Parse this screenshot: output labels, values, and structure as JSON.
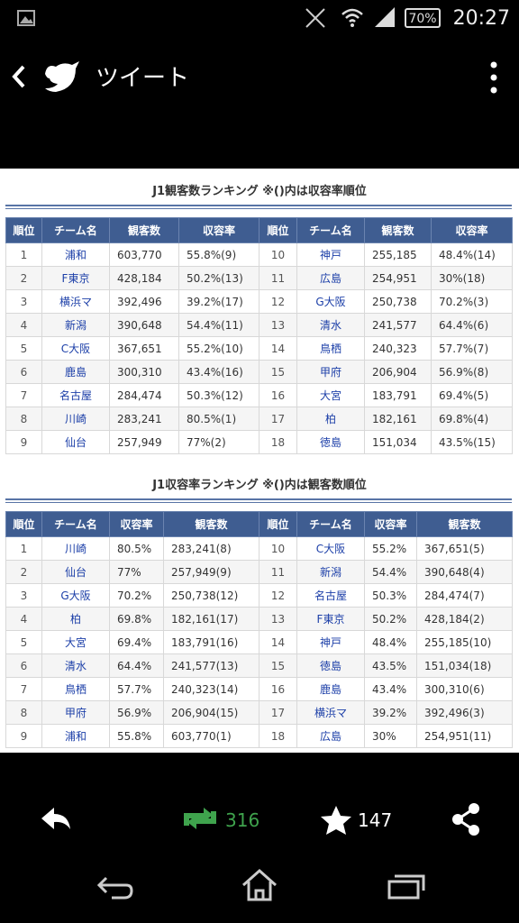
{
  "status_bar": {
    "battery": "70%",
    "time": "20:27"
  },
  "header": {
    "title": "ツイート"
  },
  "table1": {
    "title": "J1観客数ランキング ※()内は収容率順位",
    "columns": [
      "順位",
      "チーム名",
      "観客数",
      "収容率",
      "順位",
      "チーム名",
      "観客数",
      "収容率"
    ],
    "rows": [
      [
        "1",
        "浦和",
        "603,770",
        "55.8%(9)",
        "10",
        "神戸",
        "255,185",
        "48.4%(14)"
      ],
      [
        "2",
        "F東京",
        "428,184",
        "50.2%(13)",
        "11",
        "広島",
        "254,951",
        "30%(18)"
      ],
      [
        "3",
        "横浜マ",
        "392,496",
        "39.2%(17)",
        "12",
        "G大阪",
        "250,738",
        "70.2%(3)"
      ],
      [
        "4",
        "新潟",
        "390,648",
        "54.4%(11)",
        "13",
        "清水",
        "241,577",
        "64.4%(6)"
      ],
      [
        "5",
        "C大阪",
        "367,651",
        "55.2%(10)",
        "14",
        "鳥栖",
        "240,323",
        "57.7%(7)"
      ],
      [
        "6",
        "鹿島",
        "300,310",
        "43.4%(16)",
        "15",
        "甲府",
        "206,904",
        "56.9%(8)"
      ],
      [
        "7",
        "名古屋",
        "284,474",
        "50.3%(12)",
        "16",
        "大宮",
        "183,791",
        "69.4%(5)"
      ],
      [
        "8",
        "川崎",
        "283,241",
        "80.5%(1)",
        "17",
        "柏",
        "182,161",
        "69.8%(4)"
      ],
      [
        "9",
        "仙台",
        "257,949",
        "77%(2)",
        "18",
        "徳島",
        "151,034",
        "43.5%(15)"
      ]
    ]
  },
  "table2": {
    "title": "J1収容率ランキング ※()内は観客数順位",
    "columns": [
      "順位",
      "チーム名",
      "収容率",
      "観客数",
      "順位",
      "チーム名",
      "収容率",
      "観客数"
    ],
    "rows": [
      [
        "1",
        "川崎",
        "80.5%",
        "283,241(8)",
        "10",
        "C大阪",
        "55.2%",
        "367,651(5)"
      ],
      [
        "2",
        "仙台",
        "77%",
        "257,949(9)",
        "11",
        "新潟",
        "54.4%",
        "390,648(4)"
      ],
      [
        "3",
        "G大阪",
        "70.2%",
        "250,738(12)",
        "12",
        "名古屋",
        "50.3%",
        "284,474(7)"
      ],
      [
        "4",
        "柏",
        "69.8%",
        "182,161(17)",
        "13",
        "F東京",
        "50.2%",
        "428,184(2)"
      ],
      [
        "5",
        "大宮",
        "69.4%",
        "183,791(16)",
        "14",
        "神戸",
        "48.4%",
        "255,185(10)"
      ],
      [
        "6",
        "清水",
        "64.4%",
        "241,577(13)",
        "15",
        "徳島",
        "43.5%",
        "151,034(18)"
      ],
      [
        "7",
        "鳥栖",
        "57.7%",
        "240,323(14)",
        "16",
        "鹿島",
        "43.4%",
        "300,310(6)"
      ],
      [
        "8",
        "甲府",
        "56.9%",
        "206,904(15)",
        "17",
        "横浜マ",
        "39.2%",
        "392,496(3)"
      ],
      [
        "9",
        "浦和",
        "55.8%",
        "603,770(1)",
        "18",
        "広島",
        "30%",
        "254,951(11)"
      ]
    ]
  },
  "actions": {
    "retweets": "316",
    "favorites": "147"
  }
}
